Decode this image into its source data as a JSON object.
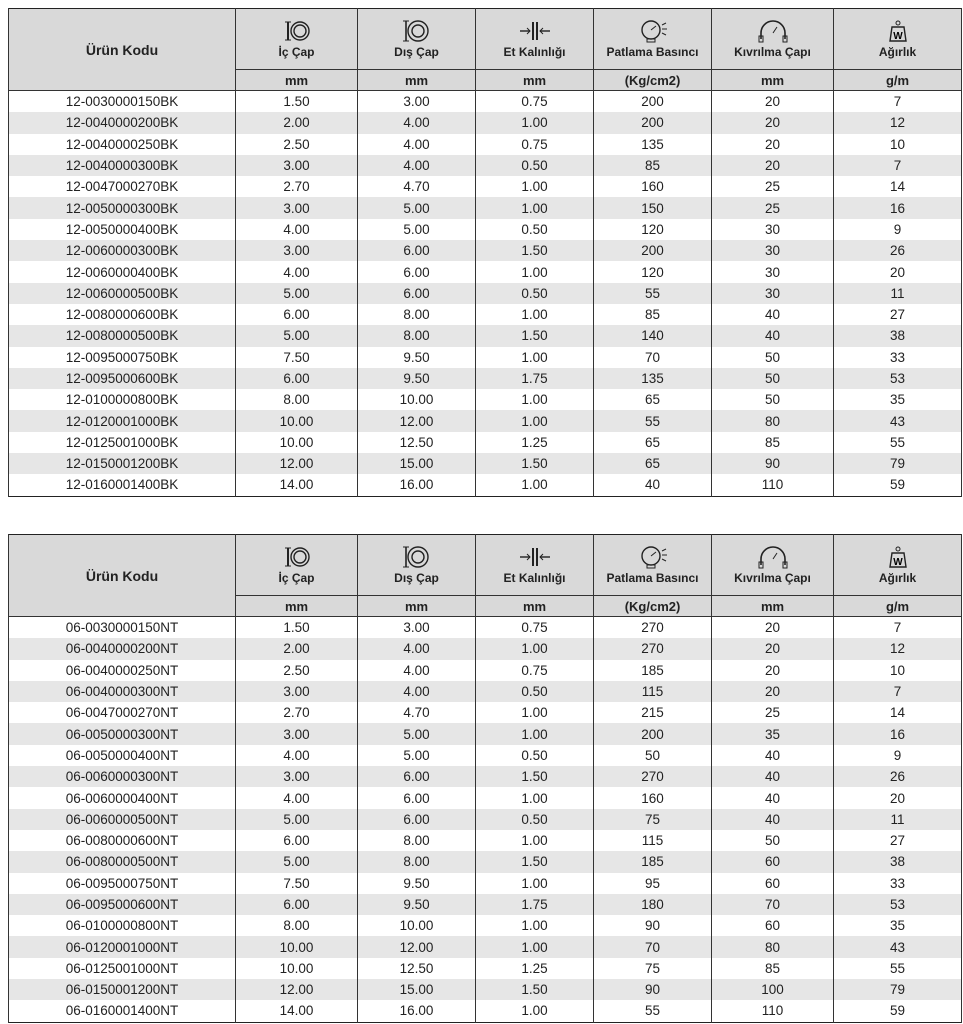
{
  "headers": {
    "code": "Ürün Kodu",
    "cols": [
      {
        "label": "İç Çap",
        "unit": "mm",
        "icon": "inner-diameter-icon"
      },
      {
        "label": "Dış Çap",
        "unit": "mm",
        "icon": "outer-diameter-icon"
      },
      {
        "label": "Et Kalınlığı",
        "unit": "mm",
        "icon": "wall-thickness-icon"
      },
      {
        "label": "Patlama Basıncı",
        "unit": "(Kg/cm2)",
        "icon": "pressure-gauge-icon"
      },
      {
        "label": "Kıvrılma Çapı",
        "unit": "mm",
        "icon": "bend-radius-icon"
      },
      {
        "label": "Ağırlık",
        "unit": "g/m",
        "icon": "weight-icon"
      }
    ]
  },
  "tables": [
    {
      "rows": [
        [
          "12-0030000150BK",
          "1.50",
          "3.00",
          "0.75",
          "200",
          "20",
          "7"
        ],
        [
          "12-0040000200BK",
          "2.00",
          "4.00",
          "1.00",
          "200",
          "20",
          "12"
        ],
        [
          "12-0040000250BK",
          "2.50",
          "4.00",
          "0.75",
          "135",
          "20",
          "10"
        ],
        [
          "12-0040000300BK",
          "3.00",
          "4.00",
          "0.50",
          "85",
          "20",
          "7"
        ],
        [
          "12-0047000270BK",
          "2.70",
          "4.70",
          "1.00",
          "160",
          "25",
          "14"
        ],
        [
          "12-0050000300BK",
          "3.00",
          "5.00",
          "1.00",
          "150",
          "25",
          "16"
        ],
        [
          "12-0050000400BK",
          "4.00",
          "5.00",
          "0.50",
          "120",
          "30",
          "9"
        ],
        [
          "12-0060000300BK",
          "3.00",
          "6.00",
          "1.50",
          "200",
          "30",
          "26"
        ],
        [
          "12-0060000400BK",
          "4.00",
          "6.00",
          "1.00",
          "120",
          "30",
          "20"
        ],
        [
          "12-0060000500BK",
          "5.00",
          "6.00",
          "0.50",
          "55",
          "30",
          "11"
        ],
        [
          "12-0080000600BK",
          "6.00",
          "8.00",
          "1.00",
          "85",
          "40",
          "27"
        ],
        [
          "12-0080000500BK",
          "5.00",
          "8.00",
          "1.50",
          "140",
          "40",
          "38"
        ],
        [
          "12-0095000750BK",
          "7.50",
          "9.50",
          "1.00",
          "70",
          "50",
          "33"
        ],
        [
          "12-0095000600BK",
          "6.00",
          "9.50",
          "1.75",
          "135",
          "50",
          "53"
        ],
        [
          "12-0100000800BK",
          "8.00",
          "10.00",
          "1.00",
          "65",
          "50",
          "35"
        ],
        [
          "12-0120001000BK",
          "10.00",
          "12.00",
          "1.00",
          "55",
          "80",
          "43"
        ],
        [
          "12-0125001000BK",
          "10.00",
          "12.50",
          "1.25",
          "65",
          "85",
          "55"
        ],
        [
          "12-0150001200BK",
          "12.00",
          "15.00",
          "1.50",
          "65",
          "90",
          "79"
        ],
        [
          "12-0160001400BK",
          "14.00",
          "16.00",
          "1.00",
          "40",
          "110",
          "59"
        ]
      ]
    },
    {
      "rows": [
        [
          "06-0030000150NT",
          "1.50",
          "3.00",
          "0.75",
          "270",
          "20",
          "7"
        ],
        [
          "06-0040000200NT",
          "2.00",
          "4.00",
          "1.00",
          "270",
          "20",
          "12"
        ],
        [
          "06-0040000250NT",
          "2.50",
          "4.00",
          "0.75",
          "185",
          "20",
          "10"
        ],
        [
          "06-0040000300NT",
          "3.00",
          "4.00",
          "0.50",
          "115",
          "20",
          "7"
        ],
        [
          "06-0047000270NT",
          "2.70",
          "4.70",
          "1.00",
          "215",
          "25",
          "14"
        ],
        [
          "06-0050000300NT",
          "3.00",
          "5.00",
          "1.00",
          "200",
          "35",
          "16"
        ],
        [
          "06-0050000400NT",
          "4.00",
          "5.00",
          "0.50",
          "50",
          "40",
          "9"
        ],
        [
          "06-0060000300NT",
          "3.00",
          "6.00",
          "1.50",
          "270",
          "40",
          "26"
        ],
        [
          "06-0060000400NT",
          "4.00",
          "6.00",
          "1.00",
          "160",
          "40",
          "20"
        ],
        [
          "06-0060000500NT",
          "5.00",
          "6.00",
          "0.50",
          "75",
          "40",
          "11"
        ],
        [
          "06-0080000600NT",
          "6.00",
          "8.00",
          "1.00",
          "115",
          "50",
          "27"
        ],
        [
          "06-0080000500NT",
          "5.00",
          "8.00",
          "1.50",
          "185",
          "60",
          "38"
        ],
        [
          "06-0095000750NT",
          "7.50",
          "9.50",
          "1.00",
          "95",
          "60",
          "33"
        ],
        [
          "06-0095000600NT",
          "6.00",
          "9.50",
          "1.75",
          "180",
          "70",
          "53"
        ],
        [
          "06-0100000800NT",
          "8.00",
          "10.00",
          "1.00",
          "90",
          "60",
          "35"
        ],
        [
          "06-0120001000NT",
          "10.00",
          "12.00",
          "1.00",
          "70",
          "80",
          "43"
        ],
        [
          "06-0125001000NT",
          "10.00",
          "12.50",
          "1.25",
          "75",
          "85",
          "55"
        ],
        [
          "06-0150001200NT",
          "12.00",
          "15.00",
          "1.50",
          "90",
          "100",
          "79"
        ],
        [
          "06-0160001400NT",
          "14.00",
          "16.00",
          "1.00",
          "55",
          "110",
          "59"
        ]
      ]
    }
  ]
}
